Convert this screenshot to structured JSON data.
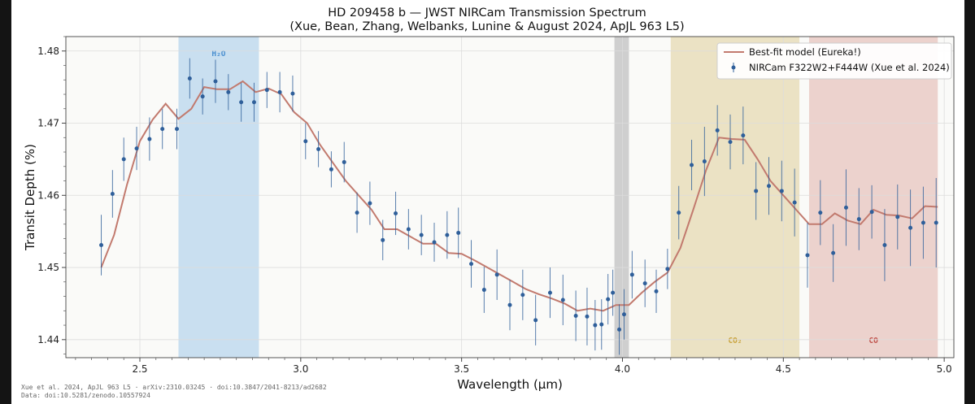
{
  "chart_data": {
    "type": "line",
    "title": "HD 209458 b — JWST NIRCam Transmission Spectrum",
    "subtitle": "(Xue, Bean, Zhang, Welbanks, Lunine & August 2024, ApJL 963 L5)",
    "xlabel": "Wavelength (μm)",
    "ylabel": "Transit Depth (%)",
    "xlim": [
      2.27,
      5.03
    ],
    "ylim": [
      1.4375,
      1.482
    ],
    "xticks": [
      2.5,
      3.0,
      3.5,
      4.0,
      4.5,
      5.0
    ],
    "xtick_labels": [
      "2.5",
      "3.0",
      "3.5",
      "4.0",
      "4.5",
      "5.0"
    ],
    "yticks": [
      1.44,
      1.45,
      1.46,
      1.47,
      1.48
    ],
    "ytick_labels": [
      "1.44",
      "1.45",
      "1.46",
      "1.47",
      "1.48"
    ],
    "grid": true,
    "legend_position": "top-right",
    "bands": [
      {
        "label": "H₂O",
        "x0": 2.62,
        "x1": 2.87,
        "color": "#c9dff0",
        "label_color": "#4a8fd0",
        "label_position": "top"
      },
      {
        "label": "",
        "x0": 3.975,
        "x1": 4.02,
        "color": "#cfcfcf",
        "label_color": "#888888",
        "label_position": "none"
      },
      {
        "label": "CO₂",
        "x0": 4.15,
        "x1": 4.55,
        "color": "#ebe2c4",
        "label_color": "#c9a23a",
        "label_position": "bottom"
      },
      {
        "label": "CO",
        "x0": 4.58,
        "x1": 4.98,
        "color": "#ecd2cd",
        "label_color": "#c0514a",
        "label_position": "bottom"
      }
    ],
    "series": [
      {
        "name": "Best-fit model (Eureka!)",
        "kind": "line",
        "color": "#c27a6e",
        "x": [
          2.38,
          2.42,
          2.46,
          2.5,
          2.54,
          2.58,
          2.62,
          2.66,
          2.7,
          2.74,
          2.78,
          2.82,
          2.86,
          2.9,
          2.94,
          2.98,
          3.02,
          3.06,
          3.1,
          3.14,
          3.18,
          3.22,
          3.26,
          3.3,
          3.34,
          3.38,
          3.42,
          3.46,
          3.5,
          3.54,
          3.58,
          3.62,
          3.66,
          3.7,
          3.74,
          3.78,
          3.82,
          3.86,
          3.9,
          3.94,
          3.98,
          4.02,
          4.06,
          4.1,
          4.14,
          4.18,
          4.22,
          4.26,
          4.3,
          4.34,
          4.38,
          4.42,
          4.46,
          4.5,
          4.54,
          4.58,
          4.62,
          4.66,
          4.7,
          4.74,
          4.78,
          4.82,
          4.86,
          4.9,
          4.94,
          4.98
        ],
        "y": [
          1.45,
          1.4545,
          1.4615,
          1.4675,
          1.4705,
          1.4727,
          1.4706,
          1.472,
          1.475,
          1.4747,
          1.4747,
          1.4758,
          1.4743,
          1.4748,
          1.474,
          1.4715,
          1.47,
          1.467,
          1.4645,
          1.462,
          1.46,
          1.458,
          1.4553,
          1.4553,
          1.4543,
          1.4533,
          1.4533,
          1.452,
          1.4519,
          1.451,
          1.45,
          1.449,
          1.448,
          1.447,
          1.4463,
          1.4457,
          1.445,
          1.444,
          1.4443,
          1.444,
          1.4448,
          1.4448,
          1.4465,
          1.448,
          1.4493,
          1.4527,
          1.458,
          1.4635,
          1.468,
          1.4678,
          1.4677,
          1.465,
          1.462,
          1.46,
          1.458,
          1.456,
          1.456,
          1.4575,
          1.4565,
          1.456,
          1.458,
          1.4573,
          1.4572,
          1.4568,
          1.4585,
          1.4584
        ]
      },
      {
        "name": "NIRCam F322W2+F444W  (Xue et al. 2024)",
        "kind": "errorbar",
        "color": "#2f5f9a",
        "x": [
          2.38,
          2.415,
          2.45,
          2.49,
          2.53,
          2.57,
          2.615,
          2.655,
          2.695,
          2.735,
          2.775,
          2.815,
          2.855,
          2.895,
          2.935,
          2.975,
          3.015,
          3.055,
          3.095,
          3.135,
          3.175,
          3.215,
          3.255,
          3.295,
          3.335,
          3.375,
          3.415,
          3.455,
          3.49,
          3.53,
          3.57,
          3.61,
          3.65,
          3.69,
          3.73,
          3.775,
          3.815,
          3.855,
          3.89,
          3.915,
          3.935,
          3.955,
          3.97,
          3.99,
          4.005,
          4.03,
          4.07,
          4.105,
          4.14,
          4.175,
          4.215,
          4.255,
          4.295,
          4.335,
          4.375,
          4.415,
          4.455,
          4.495,
          4.535,
          4.575,
          4.615,
          4.655,
          4.695,
          4.735,
          4.775,
          4.815,
          4.855,
          4.895,
          4.935,
          4.975
        ],
        "y": [
          1.4531,
          1.4602,
          1.465,
          1.4665,
          1.4678,
          1.4692,
          1.4692,
          1.4762,
          1.4737,
          1.4758,
          1.4743,
          1.4729,
          1.4729,
          1.4746,
          1.4743,
          1.4741,
          1.4675,
          1.4664,
          1.4636,
          1.4646,
          1.4576,
          1.4589,
          1.4538,
          1.4575,
          1.4553,
          1.4545,
          1.4535,
          1.4545,
          1.4548,
          1.4505,
          1.4469,
          1.449,
          1.4448,
          1.4462,
          1.4427,
          1.4465,
          1.4455,
          1.4433,
          1.4432,
          1.442,
          1.4421,
          1.4456,
          1.4465,
          1.4414,
          1.4435,
          1.449,
          1.4478,
          1.4467,
          1.4498,
          1.4576,
          1.4642,
          1.4647,
          1.469,
          1.4674,
          1.4683,
          1.4606,
          1.4613,
          1.4606,
          1.459,
          1.4517,
          1.4576,
          1.452,
          1.4583,
          1.4567,
          1.4577,
          1.4531,
          1.457,
          1.4555,
          1.4562,
          1.4562
        ],
        "yerr": [
          0.0042,
          0.0033,
          0.003,
          0.003,
          0.003,
          0.0028,
          0.0028,
          0.0028,
          0.0025,
          0.003,
          0.0025,
          0.0027,
          0.0027,
          0.0025,
          0.0028,
          0.0025,
          0.0025,
          0.0025,
          0.0025,
          0.0028,
          0.0028,
          0.003,
          0.0028,
          0.003,
          0.0028,
          0.0028,
          0.0027,
          0.0033,
          0.0035,
          0.0033,
          0.0032,
          0.0035,
          0.0035,
          0.0035,
          0.0035,
          0.0035,
          0.0035,
          0.0035,
          0.004,
          0.0035,
          0.0035,
          0.0035,
          0.0032,
          0.0035,
          0.0035,
          0.0033,
          0.0033,
          0.003,
          0.0028,
          0.0037,
          0.0035,
          0.0048,
          0.0035,
          0.0038,
          0.004,
          0.004,
          0.004,
          0.0042,
          0.0047,
          0.0045,
          0.0045,
          0.004,
          0.0053,
          0.0043,
          0.0037,
          0.005,
          0.0045,
          0.0053,
          0.005,
          0.0062
        ]
      }
    ]
  },
  "footer": {
    "line1": "Xue et al. 2024, ApJL 963 L5  ·  arXiv:2310.03245  ·  doi:10.3847/2041-8213/ad2682",
    "line2": "Data: doi:10.5281/zenodo.10557924"
  }
}
